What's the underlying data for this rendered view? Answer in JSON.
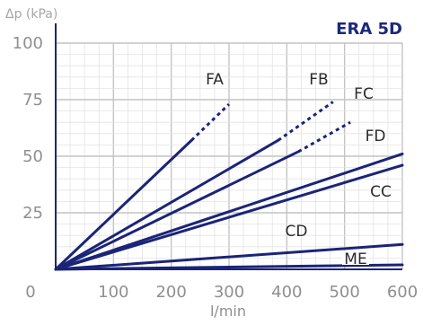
{
  "chart_data": {
    "type": "line",
    "title": "ERA 5D",
    "ylabel": "Δp (kPa)",
    "xlabel": "l/min",
    "xlim": [
      0,
      600
    ],
    "ylim": [
      0,
      100
    ],
    "x_ticks": [
      "0",
      "100",
      "200",
      "300",
      "400",
      "500",
      "600"
    ],
    "y_ticks": [
      "25",
      "50",
      "75",
      "100"
    ],
    "grid": true,
    "line_color": "#1b2478",
    "series": [
      {
        "name": "FA",
        "solid": [
          [
            0,
            0
          ],
          [
            235,
            57
          ]
        ],
        "dashed": [
          [
            235,
            57
          ],
          [
            300,
            73
          ]
        ]
      },
      {
        "name": "FB",
        "solid": [
          [
            0,
            0
          ],
          [
            385,
            57
          ]
        ],
        "dashed": [
          [
            385,
            57
          ],
          [
            480,
            74
          ]
        ]
      },
      {
        "name": "FC",
        "solid": [
          [
            0,
            0
          ],
          [
            420,
            52
          ]
        ],
        "dashed": [
          [
            420,
            52
          ],
          [
            510,
            65
          ]
        ]
      },
      {
        "name": "FD",
        "solid": [
          [
            0,
            0
          ],
          [
            600,
            51
          ]
        ],
        "dashed": []
      },
      {
        "name": "CC",
        "solid": [
          [
            0,
            0
          ],
          [
            600,
            46
          ]
        ],
        "dashed": []
      },
      {
        "name": "CD",
        "solid": [
          [
            0,
            0
          ],
          [
            600,
            11
          ]
        ],
        "dashed": []
      },
      {
        "name": "ME",
        "solid": [
          [
            0,
            0
          ],
          [
            600,
            2
          ]
        ],
        "dashed": []
      }
    ]
  }
}
